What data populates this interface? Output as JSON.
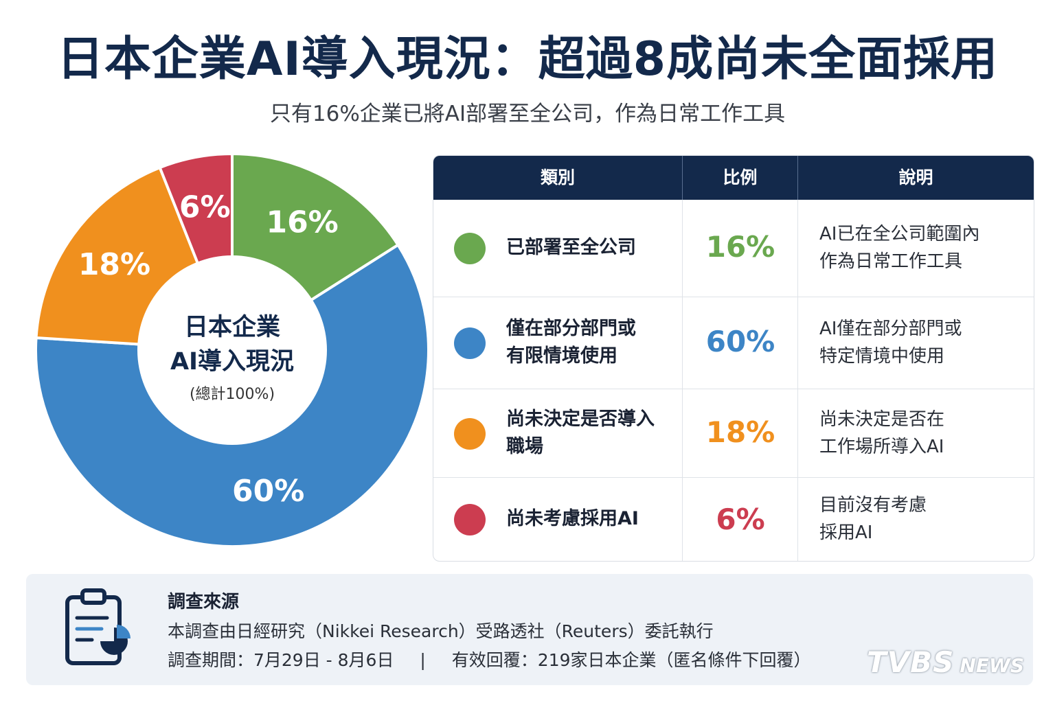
{
  "title": "日本企業AI導入現況：超過8成尚未全面採用",
  "subtitle": "只有16%企業已將AI部署至全公司，作為日常工作工具",
  "chart_data": {
    "type": "pie",
    "center_label": [
      "日本企業",
      "AI導入現況"
    ],
    "center_note": "(總計100%)",
    "slices": [
      {
        "label": "已部署至全公司",
        "value": 16,
        "display": "16%",
        "color": "#6aa84f"
      },
      {
        "label": "僅在部分部門或有限情境使用",
        "value": 60,
        "display": "60%",
        "color": "#3d85c6"
      },
      {
        "label": "尚未決定是否導入職場",
        "value": 18,
        "display": "18%",
        "color": "#f0901e"
      },
      {
        "label": "尚未考慮採用AI",
        "value": 6,
        "display": "6%",
        "color": "#cc3d50"
      }
    ]
  },
  "table": {
    "headers": [
      "類別",
      "比例",
      "說明"
    ],
    "rows": [
      {
        "cat": [
          "已部署至全公司"
        ],
        "pct": "16%",
        "desc": [
          "AI已在全公司範圍內",
          "作為日常工作工具"
        ],
        "color": "#6aa84f"
      },
      {
        "cat": [
          "僅在部分部門或",
          "有限情境使用"
        ],
        "pct": "60%",
        "desc": [
          "AI僅在部分部門或",
          "特定情境中使用"
        ],
        "color": "#3d85c6"
      },
      {
        "cat": [
          "尚未決定是否導入",
          "職場"
        ],
        "pct": "18%",
        "desc": [
          "尚未決定是否在",
          "工作場所導入AI"
        ],
        "color": "#f0901e"
      },
      {
        "cat": [
          "尚未考慮採用AI"
        ],
        "pct": "6%",
        "desc": [
          "目前沒有考慮",
          "採用AI"
        ],
        "color": "#cc3d50"
      }
    ]
  },
  "footer": {
    "heading": "調查來源",
    "line1": "本調查由日經研究（Nikkei Research）受路透社（Reuters）委託執行",
    "period": "調查期間：7月29日 - 8月6日",
    "separator": "|",
    "responses": "有效回覆：219家日本企業（匿名條件下回覆）",
    "icon": "clipboard-chart-icon"
  },
  "logo": {
    "main": "TVBS",
    "sub": "NEWS"
  }
}
